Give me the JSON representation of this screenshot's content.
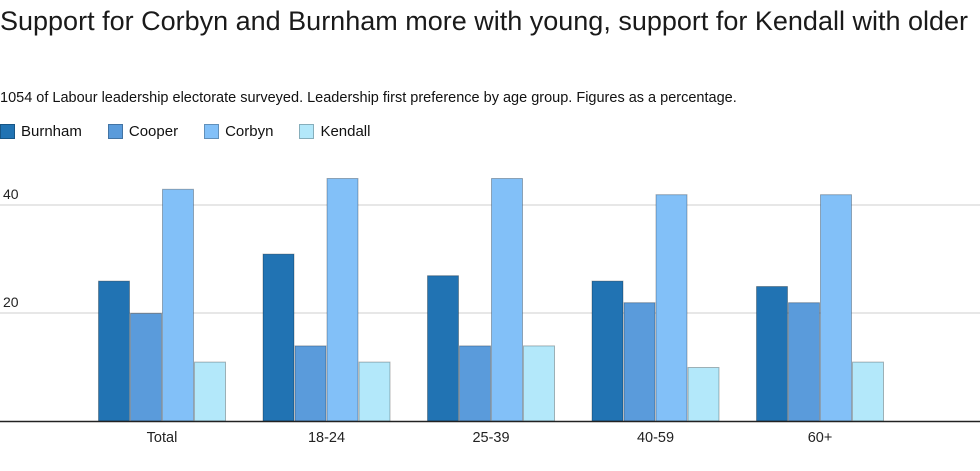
{
  "chart_data": {
    "type": "bar",
    "title": "Support for Corbyn and Burnham more with young, support for Kendall with older",
    "subtitle": "1054 of Labour leadership electorate surveyed. Leadership first preference by age group. Figures as a percentage.",
    "xlabel": "",
    "ylabel": "",
    "categories": [
      "Total",
      "18-24",
      "25-39",
      "40-59",
      "60+"
    ],
    "series": [
      {
        "name": "Burnham",
        "color": "#2173b3",
        "values": [
          26,
          31,
          27,
          26,
          25
        ]
      },
      {
        "name": "Cooper",
        "color": "#5a9bdb",
        "values": [
          20,
          14,
          14,
          22,
          22
        ]
      },
      {
        "name": "Corbyn",
        "color": "#82c0f8",
        "values": [
          43,
          45,
          45,
          42,
          42
        ]
      },
      {
        "name": "Kendall",
        "color": "#b3e8fa",
        "values": [
          11,
          11,
          14,
          10,
          11
        ]
      }
    ],
    "yticks": [
      20,
      40
    ],
    "ylim": [
      0,
      50
    ],
    "grid": true,
    "legend_position": "top-left"
  }
}
